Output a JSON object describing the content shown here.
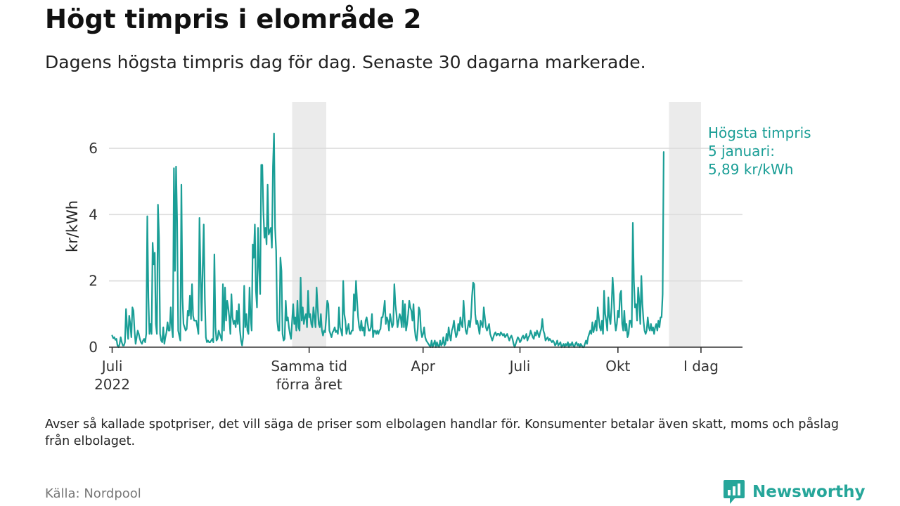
{
  "title": "Högt timpris i elområde 2",
  "subtitle": "Dagens högsta timpris dag för dag. Senaste 30 dagarna markerade.",
  "note": "Avser så kallade spotpriser, det vill säga de priser som elbolagen handlar för. Konsumenter betalar även skatt, moms och påslag från elbolaget.",
  "source": "Källa: Nordpool",
  "brand": {
    "name": "Newsworthy",
    "icon": "newsworthy-bar-chart-logo-icon"
  },
  "colors": {
    "line": "#1a9e96",
    "highlight": "#ebebeb",
    "grid": "#dddddd",
    "axis": "#333333",
    "annotation": "#1a9e96",
    "brand": "#26a69a"
  },
  "chart_data": {
    "type": "line",
    "ylabel": "kr/kWh",
    "xlabel": "",
    "ylim": [
      0,
      7.4
    ],
    "yticks": [
      0,
      2,
      4,
      6
    ],
    "x_unit": "days since 1 July 2022",
    "xlim": [
      -3,
      592
    ],
    "xticks": [
      {
        "day": 0,
        "lines": [
          "Juli",
          "2022"
        ]
      },
      {
        "day": 185,
        "lines": [
          "Samma tid",
          "förra året"
        ]
      },
      {
        "day": 292,
        "lines": [
          "Apr"
        ]
      },
      {
        "day": 383,
        "lines": [
          "Juli"
        ]
      },
      {
        "day": 475,
        "lines": [
          "Okt"
        ]
      },
      {
        "day": 553,
        "lines": [
          "I dag"
        ]
      }
    ],
    "highlight_periods": [
      {
        "start": 169,
        "end": 201
      },
      {
        "start": 523,
        "end": 553
      }
    ],
    "annotation": {
      "lines": [
        "Högsta timpris",
        "5 januari:",
        "5,89 kr/kWh"
      ],
      "day": 553,
      "value": 5.89
    },
    "series": [
      {
        "name": "Högsta timpris",
        "start_day": 0,
        "step_days": 1,
        "values": [
          0.35,
          0.27,
          0.3,
          0.22,
          0.25,
          0.05,
          0.0,
          0.1,
          0.3,
          0.15,
          0.05,
          0.05,
          0.15,
          1.15,
          0.6,
          0.25,
          0.95,
          0.7,
          0.3,
          1.2,
          1.1,
          0.5,
          0.1,
          0.3,
          0.5,
          0.4,
          0.25,
          0.15,
          0.1,
          0.2,
          0.25,
          0.15,
          0.4,
          3.95,
          1.5,
          0.4,
          0.7,
          0.4,
          3.15,
          2.5,
          2.85,
          0.7,
          0.4,
          4.3,
          3.3,
          0.4,
          0.2,
          0.15,
          0.6,
          0.1,
          0.3,
          0.45,
          0.75,
          0.5,
          0.5,
          1.2,
          0.6,
          0.3,
          5.4,
          2.3,
          5.45,
          3.8,
          0.5,
          0.35,
          0.2,
          4.9,
          1.5,
          0.7,
          0.6,
          0.5,
          0.55,
          1.1,
          0.95,
          1.55,
          0.85,
          1.9,
          0.95,
          0.8,
          0.8,
          0.8,
          0.6,
          0.4,
          3.9,
          2.2,
          0.8,
          2.4,
          3.7,
          1.5,
          0.3,
          0.15,
          0.2,
          0.15,
          0.15,
          0.2,
          0.25,
          0.15,
          2.8,
          0.6,
          0.2,
          0.25,
          0.5,
          0.4,
          0.3,
          0.2,
          1.9,
          0.5,
          1.8,
          0.8,
          1.4,
          1.2,
          0.9,
          0.4,
          1.6,
          0.9,
          0.7,
          0.8,
          0.6,
          1.1,
          0.7,
          1.3,
          0.5,
          0.2,
          0.05,
          0.3,
          1.85,
          0.6,
          1.0,
          0.5,
          0.4,
          1.8,
          0.9,
          0.5,
          3.1,
          2.7,
          3.7,
          1.7,
          1.2,
          3.6,
          2.4,
          1.6,
          5.5,
          5.5,
          4.1,
          3.3,
          3.6,
          3.1,
          4.9,
          3.4,
          3.5,
          3.6,
          3.0,
          5.45,
          6.45,
          3.6,
          2.9,
          0.8,
          0.5,
          0.5,
          2.7,
          2.3,
          0.4,
          0.2,
          0.25,
          1.4,
          0.8,
          0.9,
          0.6,
          0.4,
          0.25,
          0.8,
          1.3,
          0.7,
          0.9,
          0.5,
          1.4,
          0.6,
          0.5,
          2.1,
          0.8,
          1.2,
          0.7,
          0.9,
          1.0,
          0.6,
          1.7,
          0.9,
          1.0,
          0.7,
          0.6,
          1.2,
          0.9,
          0.6,
          1.8,
          1.2,
          0.7,
          0.6,
          1.0,
          0.5,
          0.35,
          0.5,
          0.45,
          0.9,
          1.4,
          1.3,
          0.5,
          0.4,
          0.3,
          0.45,
          0.5,
          0.6,
          0.45,
          0.5,
          0.4,
          1.2,
          0.6,
          0.5,
          0.35,
          2.0,
          1.0,
          0.8,
          0.4,
          0.55,
          0.7,
          0.4,
          0.4,
          0.5,
          0.5,
          1.6,
          1.1,
          2.0,
          1.4,
          0.9,
          0.6,
          0.5,
          0.8,
          0.5,
          0.6,
          0.35,
          0.8,
          0.9,
          0.7,
          0.5,
          0.5,
          0.6,
          1.0,
          0.3,
          0.5,
          0.5,
          0.4,
          0.5,
          0.4,
          0.5,
          0.55,
          0.9,
          0.9,
          1.1,
          1.4,
          0.7,
          0.9,
          0.8,
          0.5,
          1.0,
          0.8,
          0.6,
          0.7,
          1.9,
          1.3,
          1.0,
          0.6,
          0.8,
          1.0,
          0.9,
          0.6,
          1.4,
          0.6,
          1.3,
          0.5,
          0.7,
          1.0,
          1.4,
          1.2,
          1.1,
          0.8,
          1.3,
          0.6,
          0.3,
          0.2,
          0.55,
          1.2,
          1.1,
          0.5,
          0.3,
          0.4,
          0.6,
          0.3,
          0.2,
          0.15,
          0.1,
          0.05,
          0.0,
          0.2,
          0.0,
          0.1,
          0.2,
          0.0,
          0.15,
          0.05,
          0.0,
          0.2,
          0.05,
          0.1,
          0.3,
          0.05,
          0.1,
          0.4,
          0.2,
          0.6,
          0.35,
          0.2,
          0.5,
          0.6,
          0.8,
          0.5,
          0.3,
          0.4,
          0.7,
          0.5,
          0.9,
          0.7,
          0.6,
          1.4,
          0.9,
          0.5,
          0.4,
          0.6,
          0.8,
          0.6,
          0.9,
          1.55,
          1.95,
          1.9,
          1.0,
          0.7,
          0.8,
          0.6,
          0.4,
          0.8,
          0.7,
          0.6,
          1.2,
          0.9,
          0.6,
          0.5,
          0.6,
          0.7,
          0.4,
          0.3,
          0.2,
          0.3,
          0.4,
          0.45,
          0.35,
          0.4,
          0.4,
          0.35,
          0.45,
          0.4,
          0.35,
          0.4,
          0.3,
          0.35,
          0.4,
          0.3,
          0.2,
          0.3,
          0.35,
          0.25,
          0.1,
          0.0,
          0.1,
          0.2,
          0.3,
          0.25,
          0.15,
          0.2,
          0.3,
          0.35,
          0.25,
          0.3,
          0.4,
          0.2,
          0.3,
          0.35,
          0.5,
          0.4,
          0.3,
          0.25,
          0.45,
          0.35,
          0.5,
          0.4,
          0.3,
          0.45,
          0.55,
          0.85,
          0.5,
          0.4,
          0.2,
          0.25,
          0.3,
          0.2,
          0.25,
          0.2,
          0.15,
          0.2,
          0.15,
          0.05,
          0.1,
          0.2,
          0.05,
          0.1,
          0.15,
          0.0,
          0.05,
          0.1,
          0.0,
          0.1,
          0.05,
          0.15,
          0.0,
          0.1,
          0.05,
          0.15,
          0.05,
          0.0,
          0.1,
          0.15,
          0.05,
          0.1,
          0.0,
          0.1,
          0.05,
          0.0,
          0.0,
          0.1,
          0.2,
          0.1,
          0.3,
          0.4,
          0.5,
          0.4,
          0.75,
          0.45,
          0.6,
          0.8,
          0.5,
          1.2,
          0.9,
          0.6,
          0.5,
          0.8,
          0.4,
          1.7,
          1.0,
          0.8,
          0.5,
          1.5,
          0.9,
          0.7,
          1.2,
          2.1,
          1.6,
          0.8,
          0.5,
          0.7,
          1.1,
          0.9,
          1.6,
          1.7,
          0.7,
          0.5,
          1.1,
          0.5,
          0.7,
          0.3,
          0.4,
          0.8,
          0.8,
          0.6,
          3.75,
          2.0,
          1.2,
          1.3,
          0.8,
          1.8,
          1.4,
          0.7,
          2.15,
          1.3,
          0.8,
          0.5,
          0.4,
          0.5,
          0.9,
          0.6,
          0.5,
          0.7,
          0.5,
          0.6,
          0.4,
          0.6,
          0.7,
          0.5,
          0.8,
          0.6,
          0.9,
          0.9,
          1.6,
          5.89
        ]
      }
    ]
  }
}
